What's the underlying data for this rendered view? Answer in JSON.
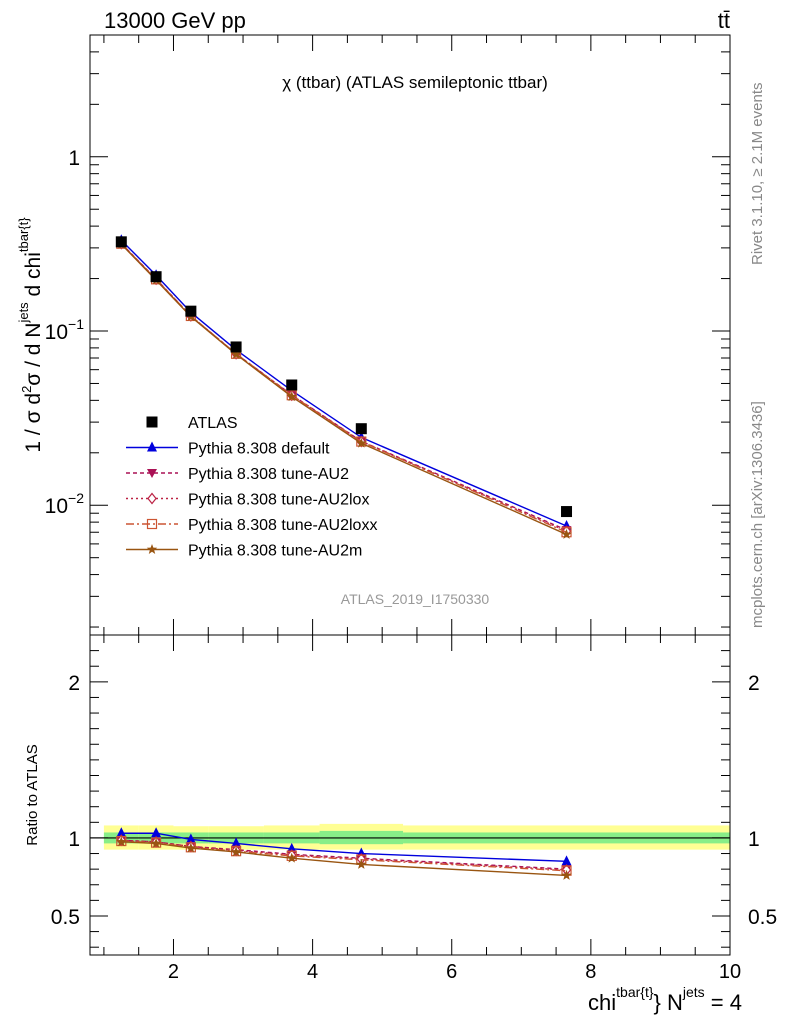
{
  "header": {
    "energy_label": "13000 GeV pp",
    "process_label": "tt̄",
    "side_label_rivet": "Rivet 3.1.10, ≥ 2.1M events",
    "side_label_mcplots": "mcplots.cern.ch [arXiv:1306.3436]"
  },
  "chart_data": [
    {
      "type": "line",
      "panel": "main",
      "title": "χ (ttbar) (ATLAS semileptonic ttbar)",
      "ylabel_text": "1 / σ d²σ / d N^jets d chi^tbar{t}",
      "watermark": "ATLAS_2019_I1750330",
      "yscale": "log",
      "ylim": [
        0.0018,
        5.0
      ],
      "xlim": [
        0.8,
        10.0
      ],
      "y_ticks": [
        {
          "value": 1,
          "label": "1"
        },
        {
          "value": 0.1,
          "label": "10^-1",
          "base": "10",
          "exp": "−1"
        },
        {
          "value": 0.01,
          "label": "10^-2",
          "base": "10",
          "exp": "−2"
        }
      ],
      "legend_position": "center-left",
      "x": [
        1.25,
        1.75,
        2.25,
        2.9,
        3.7,
        4.7,
        7.65
      ],
      "data": {
        "name": "ATLAS",
        "y": [
          0.325,
          0.205,
          0.13,
          0.081,
          0.049,
          0.0275,
          0.0092
        ]
      },
      "series": [
        {
          "name": "Pythia 8.308 default",
          "color": "#0000dd",
          "marker": "triangle-up",
          "dash": "",
          "y": [
            0.332,
            0.209,
            0.128,
            0.078,
            0.0455,
            0.0245,
            0.0076
          ]
        },
        {
          "name": "Pythia 8.308 tune-AU2",
          "color": "#aa1155",
          "marker": "triangle-down",
          "dash": "4,3",
          "y": [
            0.318,
            0.199,
            0.122,
            0.074,
            0.043,
            0.0233,
            0.0072
          ]
        },
        {
          "name": "Pythia 8.308 tune-AU2lox",
          "color": "#bb2244",
          "marker": "diamond-open",
          "dash": "2,3",
          "y": [
            0.317,
            0.198,
            0.122,
            0.074,
            0.0428,
            0.0232,
            0.0071
          ]
        },
        {
          "name": "Pythia 8.308 tune-AU2loxx",
          "color": "#cc5533",
          "marker": "square-open",
          "dash": "8,3,2,3",
          "y": [
            0.317,
            0.198,
            0.122,
            0.074,
            0.0428,
            0.0232,
            0.007
          ]
        },
        {
          "name": "Pythia 8.308 tune-AU2m",
          "color": "#995511",
          "marker": "star",
          "dash": "",
          "y": [
            0.315,
            0.196,
            0.121,
            0.0735,
            0.042,
            0.0227,
            0.0068
          ]
        }
      ]
    },
    {
      "type": "line",
      "panel": "ratio",
      "ylabel": "Ratio to ATLAS",
      "xlabel_text": "chi^tbar{t} N^jets = 4",
      "ylim": [
        0.25,
        2.3
      ],
      "xlim": [
        0.8,
        10.0
      ],
      "y_ticks": [
        0.5,
        1,
        2
      ],
      "x_ticks": [
        2,
        4,
        6,
        8,
        10
      ],
      "reference_line": 1,
      "bands": [
        {
          "x_from": 1.0,
          "x_to": 1.5,
          "inner": [
            0.965,
            1.035
          ],
          "outer": [
            0.925,
            1.08
          ]
        },
        {
          "x_from": 1.5,
          "x_to": 2.0,
          "inner": [
            0.965,
            1.035
          ],
          "outer": [
            0.925,
            1.08
          ]
        },
        {
          "x_from": 2.0,
          "x_to": 2.5,
          "inner": [
            0.965,
            1.035
          ],
          "outer": [
            0.925,
            1.075
          ]
        },
        {
          "x_from": 2.5,
          "x_to": 3.3,
          "inner": [
            0.965,
            1.035
          ],
          "outer": [
            0.925,
            1.075
          ]
        },
        {
          "x_from": 3.3,
          "x_to": 4.1,
          "inner": [
            0.965,
            1.035
          ],
          "outer": [
            0.925,
            1.08
          ]
        },
        {
          "x_from": 4.1,
          "x_to": 5.3,
          "inner": [
            0.96,
            1.045
          ],
          "outer": [
            0.925,
            1.09
          ]
        },
        {
          "x_from": 5.3,
          "x_to": 10.0,
          "inner": [
            0.965,
            1.035
          ],
          "outer": [
            0.925,
            1.08
          ]
        }
      ],
      "x": [
        1.25,
        1.75,
        2.25,
        2.9,
        3.7,
        4.7,
        7.65
      ],
      "series": [
        {
          "name": "Pythia 8.308 default",
          "y": [
            1.03,
            1.03,
            0.99,
            0.965,
            0.93,
            0.9,
            0.85
          ]
        },
        {
          "name": "Pythia 8.308 tune-AU2",
          "y": [
            0.985,
            0.975,
            0.945,
            0.925,
            0.895,
            0.87,
            0.8
          ]
        },
        {
          "name": "Pythia 8.308 tune-AU2lox",
          "y": [
            0.985,
            0.975,
            0.945,
            0.92,
            0.89,
            0.865,
            0.795
          ]
        },
        {
          "name": "Pythia 8.308 tune-AU2loxx",
          "y": [
            0.98,
            0.97,
            0.94,
            0.915,
            0.885,
            0.86,
            0.79
          ]
        },
        {
          "name": "Pythia 8.308 tune-AU2m",
          "y": [
            0.975,
            0.965,
            0.935,
            0.91,
            0.87,
            0.83,
            0.76
          ]
        }
      ]
    }
  ]
}
